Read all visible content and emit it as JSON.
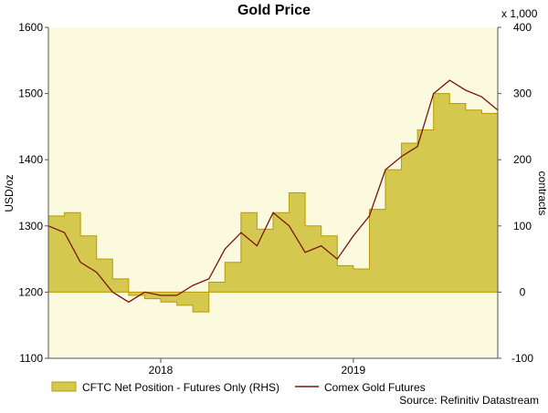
{
  "chart_data": {
    "type": "line",
    "title": "Gold Price",
    "ylabel_left": "USD/oz",
    "ylabel_right": "contracts",
    "right_multiplier": "x 1,000",
    "source": "Source: Refinitiv Datastream",
    "x_range": [
      "2017-06",
      "2019-10"
    ],
    "x_ticks": [
      {
        "label": "2018",
        "x": "2018-01"
      },
      {
        "label": "2019",
        "x": "2019-01"
      }
    ],
    "ylim_left": [
      1100,
      1600
    ],
    "yticks_left": [
      "1100",
      "1200",
      "1300",
      "1400",
      "1500",
      "1600"
    ],
    "ylim_right": [
      -100,
      400
    ],
    "yticks_right": [
      "-100",
      "0",
      "100",
      "200",
      "300",
      "400"
    ],
    "grid": false,
    "legend_position": "bottom",
    "colors": {
      "area_fill": "#d4c84f",
      "area_edge": "#b89b00",
      "line": "#7a1414",
      "plot_bg": "#fbf9de",
      "axis": "#555555"
    },
    "series": [
      {
        "name": "CFTC Net Position - Futures Only (RHS)",
        "kind": "area",
        "axis": "right",
        "x": [
          "2017-06",
          "2017-07",
          "2017-08",
          "2017-09",
          "2017-10",
          "2017-11",
          "2017-12",
          "2018-01",
          "2018-02",
          "2018-03",
          "2018-04",
          "2018-05",
          "2018-06",
          "2018-07",
          "2018-08",
          "2018-09",
          "2018-10",
          "2018-11",
          "2018-12",
          "2019-01",
          "2019-02",
          "2019-03",
          "2019-04",
          "2019-05",
          "2019-06",
          "2019-07",
          "2019-08",
          "2019-09",
          "2019-10"
        ],
        "values": [
          115,
          120,
          85,
          50,
          20,
          -5,
          -10,
          -15,
          -20,
          -30,
          15,
          45,
          120,
          95,
          120,
          150,
          100,
          85,
          40,
          35,
          125,
          185,
          225,
          245,
          300,
          285,
          275,
          270,
          280
        ]
      },
      {
        "name": "Comex Gold Futures",
        "kind": "line",
        "axis": "left",
        "x": [
          "2017-06",
          "2017-07",
          "2017-08",
          "2017-09",
          "2017-10",
          "2017-11",
          "2017-12",
          "2018-01",
          "2018-02",
          "2018-03",
          "2018-04",
          "2018-05",
          "2018-06",
          "2018-07",
          "2018-08",
          "2018-09",
          "2018-10",
          "2018-11",
          "2018-12",
          "2019-01",
          "2019-02",
          "2019-03",
          "2019-04",
          "2019-05",
          "2019-06",
          "2019-07",
          "2019-08",
          "2019-09",
          "2019-10"
        ],
        "values": [
          1300,
          1290,
          1245,
          1230,
          1200,
          1185,
          1200,
          1195,
          1195,
          1210,
          1220,
          1265,
          1290,
          1270,
          1320,
          1300,
          1260,
          1270,
          1250,
          1285,
          1315,
          1385,
          1405,
          1420,
          1500,
          1520,
          1505,
          1495,
          1475
        ]
      }
    ]
  }
}
